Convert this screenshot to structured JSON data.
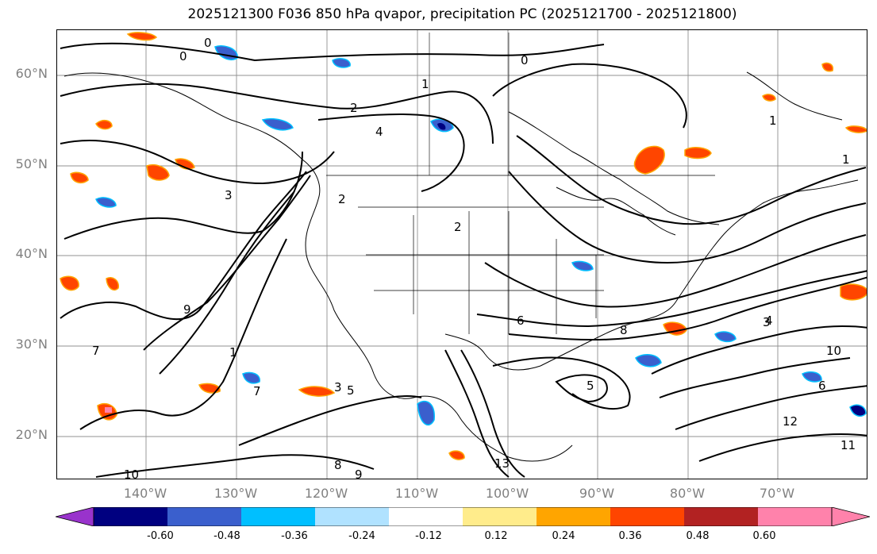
{
  "title": "2025121300 F036 850 hPa qvapor, precipitation PC (2025121700 - 2025121800)",
  "lat_labels": [
    "60°N",
    "50°N",
    "40°N",
    "30°N",
    "20°N"
  ],
  "lon_labels": [
    "140°W",
    "130°W",
    "120°W",
    "110°W",
    "100°W",
    "90°W",
    "80°W",
    "70°W"
  ],
  "contour_labels": [
    "0",
    "0",
    "1",
    "2",
    "4",
    "3",
    "2",
    "1",
    "2",
    "3",
    "4",
    "5",
    "6",
    "8",
    "9",
    "10",
    "7",
    "1",
    "0",
    "1",
    "3",
    "5",
    "6",
    "7",
    "8",
    "9",
    "11",
    "10",
    "13",
    "12"
  ],
  "colorbar": {
    "ticks": [
      "-0.60",
      "-0.48",
      "-0.36",
      "-0.24",
      "-0.12",
      "0.12",
      "0.24",
      "0.36",
      "0.48",
      "0.60"
    ],
    "colors": {
      "under": "#9933cc",
      "bins": [
        "#000080",
        "#3a5fcd",
        "#00bfff",
        "#b0e2ff",
        "#ffffff",
        "#ffec8b",
        "#ffa500",
        "#ff4500",
        "#b22222",
        "#ff82ab"
      ],
      "over": "#ff82ab"
    }
  },
  "colors": {
    "contour": "#000000",
    "grid": "#808080",
    "axis_label": "#808080"
  }
}
